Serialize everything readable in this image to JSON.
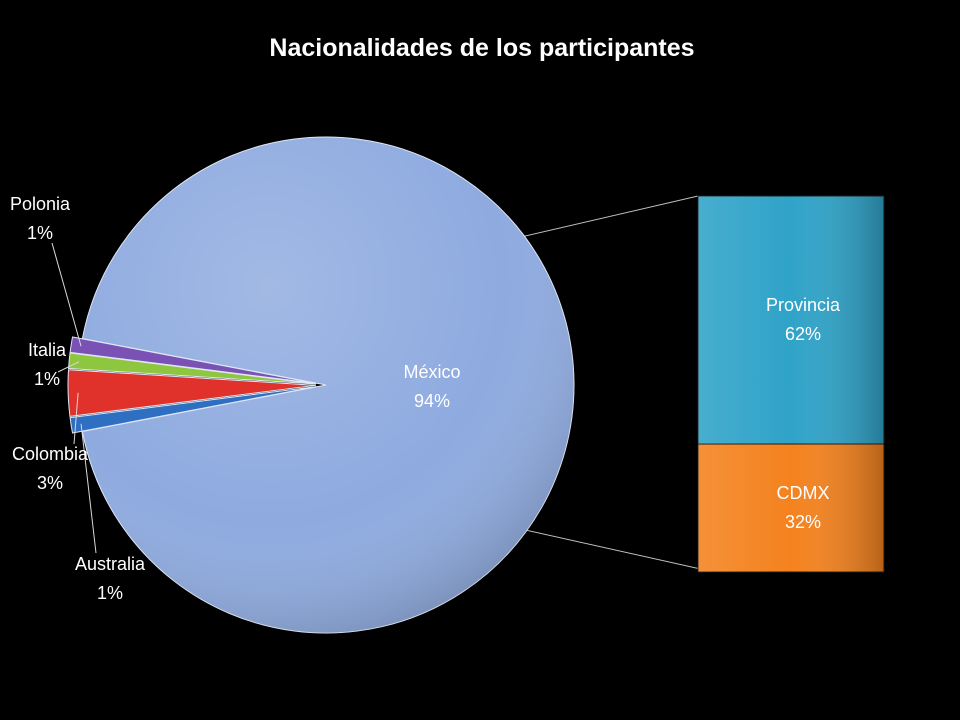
{
  "chart_data": {
    "type": "bar-of-pie",
    "title": "Nacionalidades de los participantes",
    "pie": {
      "slices": [
        {
          "name": "México",
          "value": 94,
          "label": "94%",
          "color": "#8eaadf"
        },
        {
          "name": "Australia",
          "value": 1,
          "label": "1%",
          "color": "#2f6fc2"
        },
        {
          "name": "Colombia",
          "value": 3,
          "label": "3%",
          "color": "#e0312b"
        },
        {
          "name": "Italia",
          "value": 1,
          "label": "1%",
          "color": "#8fc63f"
        },
        {
          "name": "Polonia",
          "value": 1,
          "label": "1%",
          "color": "#7a52b5"
        }
      ]
    },
    "bar": {
      "of": "México",
      "segments": [
        {
          "name": "CDMX",
          "value": 32,
          "label": "32%",
          "color": "#f4821e"
        },
        {
          "name": "Provincia",
          "value": 62,
          "label": "62%",
          "color": "#2fa3c8"
        }
      ]
    }
  }
}
